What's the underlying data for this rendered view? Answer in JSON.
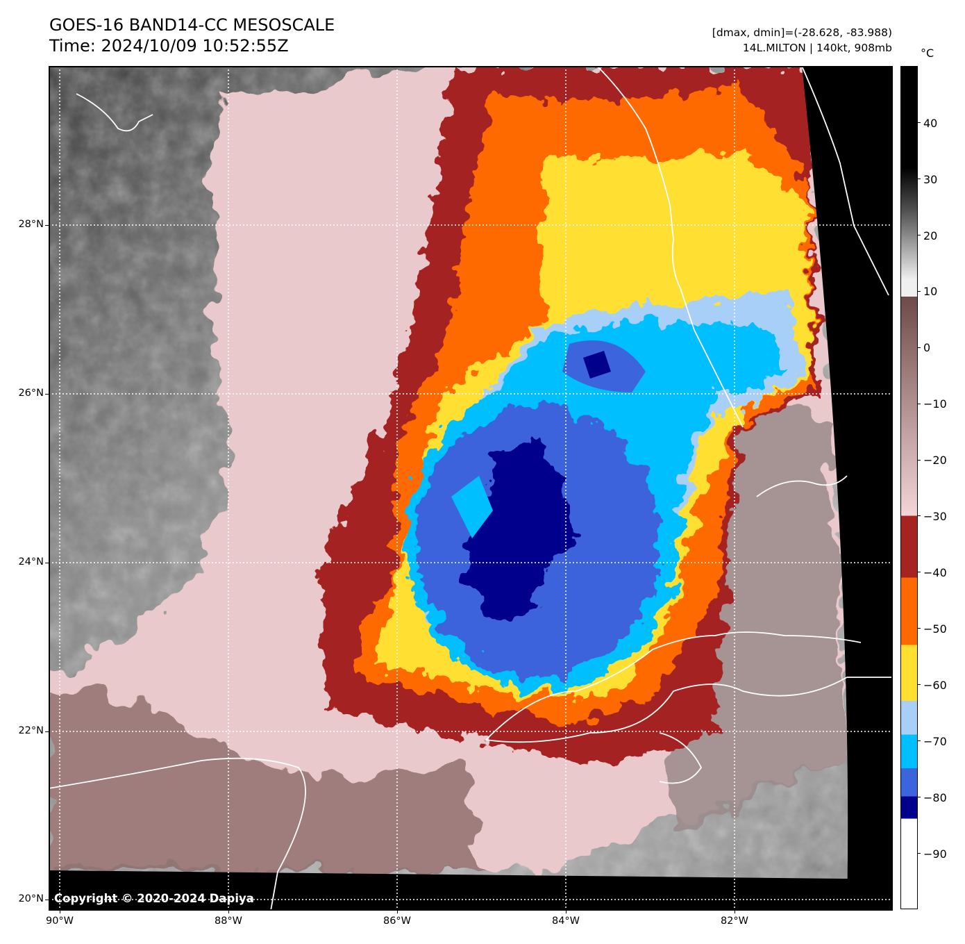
{
  "header": {
    "title_line1": "GOES-16 BAND14-CC MESOSCALE",
    "title_line2": "Time: 2024/10/09 10:52:55Z",
    "dmax_dmin": "[dmax, dmin]=(-28.628, -83.988)",
    "storm_info": "14L.MILTON | 140kt, 908mb"
  },
  "map": {
    "latitude_labels": [
      "28°N",
      "26°N",
      "24°N",
      "22°N",
      "20°N"
    ],
    "longitude_labels": [
      "90°W",
      "88°W",
      "86°W",
      "84°W",
      "82°W"
    ],
    "copyright": "Copyright © 2020-2024 Dapiya"
  },
  "colorbar": {
    "unit": "°C",
    "tick_labels": [
      "40",
      "30",
      "20",
      "10",
      "0",
      "−10",
      "−20",
      "−30",
      "−40",
      "−50",
      "−60",
      "−70",
      "−80",
      "−90"
    ],
    "range": [
      -100,
      50
    ],
    "colors": {
      "warm_black": "#000000",
      "gray_white": "#f0f0f0",
      "brown": "#6e4b48",
      "pink": "#f4d6d8",
      "dark_red": "#a52422",
      "orange": "#ff6a00",
      "yellow": "#ffe030",
      "light_blue": "#a8cff8",
      "cyan": "#00bfff",
      "royal_blue": "#3c64dc",
      "navy": "#00008c",
      "cold_white": "#ffffff"
    }
  }
}
